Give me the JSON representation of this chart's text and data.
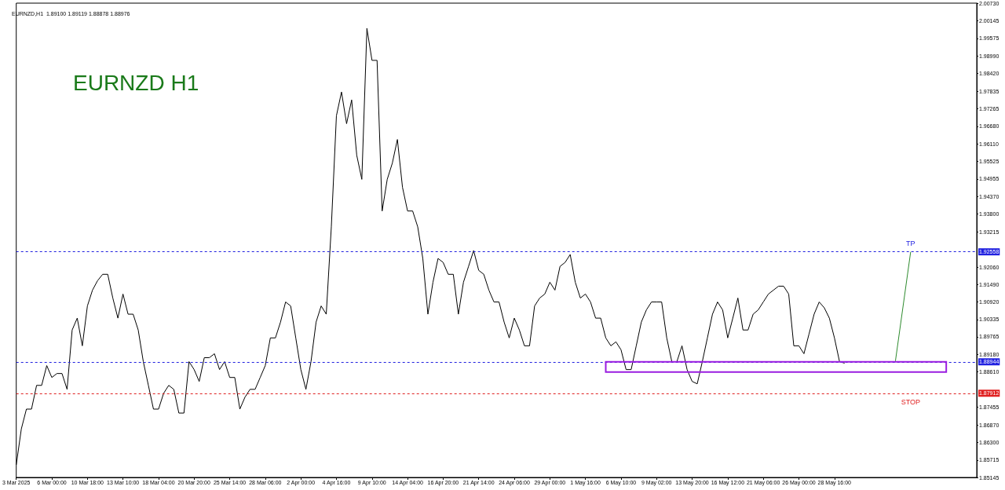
{
  "chart_data": {
    "type": "line",
    "title": "EURNZD H1",
    "subtitle": "EURNZD,H1  1.89100 1.89119 1.88878 1.88976",
    "categories": [
      "3 Mar 2025",
      null,
      null,
      null,
      null,
      null,
      null,
      "6 Mar 00:00",
      null,
      null,
      null,
      null,
      null,
      null,
      "10 Mar 18:00",
      null,
      null,
      null,
      null,
      null,
      null,
      "13 Mar 10:00",
      null,
      null,
      null,
      null,
      null,
      null,
      "18 Mar 04:00",
      null,
      null,
      null,
      null,
      null,
      null,
      "20 Mar 20:00",
      null,
      null,
      null,
      null,
      null,
      null,
      "25 Mar 14:00",
      null,
      null,
      null,
      null,
      null,
      null,
      "28 Mar 06:00",
      null,
      null,
      null,
      null,
      null,
      null,
      "2 Apr 00:00",
      null,
      null,
      null,
      null,
      null,
      null,
      "4 Apr 16:00",
      null,
      null,
      null,
      null,
      null,
      null,
      "9 Apr 10:00",
      null,
      null,
      null,
      null,
      null,
      null,
      "14 Apr 04:00",
      null,
      null,
      null,
      null,
      null,
      null,
      "16 Apr 20:00",
      null,
      null,
      null,
      null,
      null,
      null,
      "21 Apr 14:00",
      null,
      null,
      null,
      null,
      null,
      null,
      "24 Apr 06:00",
      null,
      null,
      null,
      null,
      null,
      null,
      "29 Apr 00:00",
      null,
      null,
      null,
      null,
      null,
      null,
      "1 May 16:00",
      null,
      null,
      null,
      null,
      null,
      null,
      "6 May 10:00",
      null,
      null,
      null,
      null,
      null,
      null,
      "9 May 02:00",
      null,
      null,
      null,
      null,
      null,
      null,
      "13 May 20:00",
      null,
      null,
      null,
      null,
      null,
      null,
      "16 May 12:00",
      null,
      null,
      null,
      null,
      null,
      null,
      "21 May 06:00",
      null,
      null,
      null,
      null,
      null,
      null,
      "26 May 00:00",
      null,
      null,
      null,
      null,
      null,
      null,
      "28 May 16:00",
      null,
      null,
      null,
      null,
      null,
      null,
      null,
      null,
      null,
      null,
      null,
      null,
      null,
      null,
      null,
      null,
      null,
      null,
      null,
      null,
      null,
      null,
      null,
      null,
      null,
      null,
      null,
      null
    ],
    "ylim": [
      1.85145,
      2.0073
    ],
    "yticks": [
      {
        "value": 1.85145,
        "label": "1.85145"
      },
      {
        "value": 1.85715,
        "label": "1.85715"
      },
      {
        "value": 1.863,
        "label": "1.86300"
      },
      {
        "value": 1.8687,
        "label": "1.86870"
      },
      {
        "value": 1.87455,
        "label": "1.87455"
      },
      {
        "value": 1.8861,
        "label": "1.88610"
      },
      {
        "value": 1.8918,
        "label": "1.89180"
      },
      {
        "value": 1.89765,
        "label": "1.89765"
      },
      {
        "value": 1.90335,
        "label": "1.90335"
      },
      {
        "value": 1.9092,
        "label": "1.90920"
      },
      {
        "value": 1.9149,
        "label": "1.91490"
      },
      {
        "value": 1.9206,
        "label": "1.92060"
      },
      {
        "value": 1.93215,
        "label": "1.93215"
      },
      {
        "value": 1.938,
        "label": "1.93800"
      },
      {
        "value": 1.9437,
        "label": "1.94370"
      },
      {
        "value": 1.94955,
        "label": "1.94955"
      },
      {
        "value": 1.95525,
        "label": "1.95525"
      },
      {
        "value": 1.9611,
        "label": "1.96110"
      },
      {
        "value": 1.9668,
        "label": "1.96680"
      },
      {
        "value": 1.97265,
        "label": "1.97265"
      },
      {
        "value": 1.97835,
        "label": "1.97835"
      },
      {
        "value": 1.9842,
        "label": "1.98420"
      },
      {
        "value": 1.9899,
        "label": "1.98990"
      },
      {
        "value": 1.99575,
        "label": "1.99575"
      },
      {
        "value": 2.00145,
        "label": "2.00145"
      },
      {
        "value": 2.0073,
        "label": "2.00730"
      }
    ],
    "grid": false,
    "marker": "none",
    "series": [
      {
        "color": "#000000",
        "values": [
          1.8556,
          1.8674,
          1.8739,
          1.8739,
          1.8817,
          1.8817,
          1.8882,
          1.8843,
          1.8856,
          1.8856,
          1.8804,
          1.8999,
          1.9038,
          1.8947,
          1.9078,
          1.913,
          1.9161,
          1.9182,
          1.9182,
          1.9104,
          1.9038,
          1.9117,
          1.9051,
          1.9051,
          1.8999,
          1.8895,
          1.8817,
          1.8739,
          1.8739,
          1.8791,
          1.8817,
          1.8804,
          1.8726,
          1.8726,
          1.8895,
          1.8869,
          1.883,
          1.8908,
          1.8908,
          1.8921,
          1.8869,
          1.8895,
          1.8843,
          1.8843,
          1.8739,
          1.8778,
          1.8804,
          1.8804,
          1.8843,
          1.8882,
          1.8973,
          1.8973,
          1.9025,
          1.9091,
          1.9078,
          1.8973,
          1.8869,
          1.8804,
          1.8895,
          1.9025,
          1.9078,
          1.9051,
          1.9338,
          1.9703,
          1.9781,
          1.9677,
          1.9755,
          1.9573,
          1.9494,
          1.999,
          1.9885,
          1.9885,
          1.939,
          1.9494,
          1.9547,
          1.9625,
          1.9468,
          1.939,
          1.939,
          1.9338,
          1.9234,
          1.9051,
          1.9156,
          1.9234,
          1.9221,
          1.9182,
          1.9182,
          1.9051,
          1.9156,
          1.9208,
          1.926,
          1.9195,
          1.9182,
          1.913,
          1.9091,
          1.9091,
          1.9025,
          1.8973,
          1.9038,
          1.8999,
          1.8947,
          1.8947,
          1.9078,
          1.9104,
          1.9117,
          1.9156,
          1.913,
          1.9208,
          1.9221,
          1.9247,
          1.9156,
          1.9104,
          1.9117,
          1.9091,
          1.9038,
          1.9038,
          1.8973,
          1.8947,
          1.896,
          1.8934,
          1.8869,
          1.8869,
          1.8947,
          1.9025,
          1.9065,
          1.9091,
          1.9091,
          1.9091,
          1.8973,
          1.8895,
          1.8895,
          1.8947,
          1.8869,
          1.883,
          1.8822,
          1.8895,
          1.8973,
          1.9051,
          1.9091,
          1.9065,
          1.8973,
          1.9038,
          1.9104,
          1.8999,
          1.8999,
          1.9051,
          1.9065,
          1.9091,
          1.9117,
          1.913,
          1.9143,
          1.9143,
          1.9117,
          1.8947,
          1.8947,
          1.8921,
          1.8986,
          1.9051,
          1.9091,
          1.9072,
          1.9038,
          1.8973,
          1.8895,
          1.889,
          null,
          null,
          null,
          null,
          null,
          null,
          null,
          null,
          null,
          null,
          null,
          null,
          null,
          null,
          null,
          null,
          null,
          null,
          null,
          null,
          null,
          null,
          null,
          null,
          null,
          null
        ]
      }
    ],
    "ref_lines": [
      {
        "axis": "y",
        "value": 1.92558,
        "label": "1.92558",
        "color": "#2020e0",
        "line_style": "dashed"
      },
      {
        "axis": "y",
        "value": 1.88944,
        "label": "1.88944",
        "color": "#2020e0",
        "line_style": "dashed"
      },
      {
        "axis": "y",
        "value": 1.87912,
        "label": "1.87912",
        "color": "#e02020",
        "line_style": "dashed"
      }
    ],
    "annotations": [
      {
        "text": "TP",
        "y": 1.92558
      },
      "STOP"
    ]
  }
}
